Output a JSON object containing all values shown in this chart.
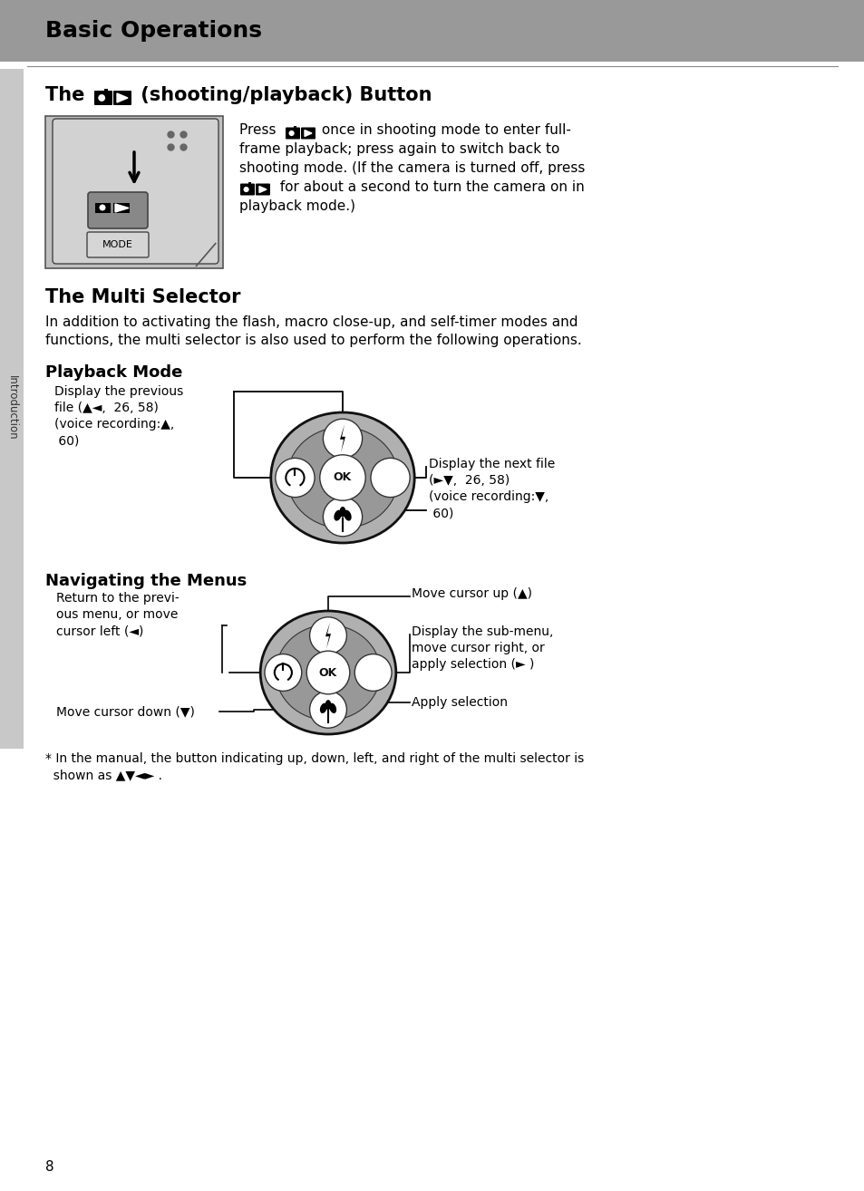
{
  "page_bg": "#ffffff",
  "header_bg": "#999999",
  "header_text": "Basic Operations",
  "sidebar_bg": "#c8c8c8",
  "sidebar_text": "Introduction",
  "page_number": "8",
  "s1_title": "The  (shooting/playback) Button",
  "s2_title": "The Multi Selector",
  "s2_body1": "In addition to activating the flash, macro close-up, and self-timer modes and",
  "s2_body2": "functions, the multi selector is also used to perform the following operations.",
  "pb_title": "Playback Mode",
  "pb_left_line1": "Display the previous",
  "pb_left_line2": "file (▲◄,  26, 58)",
  "pb_left_line3": "(voice recording:▲,",
  "pb_left_line4": " 60)",
  "pb_right_line1": "Display the next file",
  "pb_right_line2": "(►▼,  26, 58)",
  "pb_right_line3": "(voice recording:▼,",
  "pb_right_line4": " 60)",
  "nav_title": "Navigating the Menus",
  "nav_left_line1": "Return to the previ-",
  "nav_left_line2": "ous menu, or move",
  "nav_left_line3": "cursor left (◄)",
  "nav_up": "Move cursor up (▲)",
  "nav_right_line1": "Display the sub-menu,",
  "nav_right_line2": "move cursor right, or",
  "nav_right_line3": "apply selection (► )",
  "nav_down": "Move cursor down (▼)",
  "nav_apply": "Apply selection",
  "footer1": "* In the manual, the button indicating up, down, left, and right of the multi selector is",
  "footer2": "  shown as ▲▼◄► .",
  "s1_body1": "Press   once in shooting mode to enter full-",
  "s1_body2": "frame playback; press again to switch back to",
  "s1_body3": "shooting mode. (If the camera is turned off, press",
  "s1_body4": "  for about a second to turn the camera on in",
  "s1_body5": "playback mode.)"
}
